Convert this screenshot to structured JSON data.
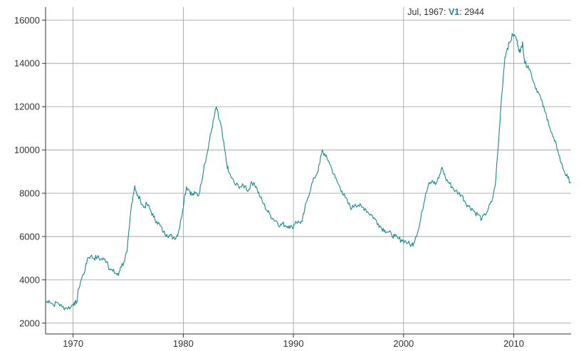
{
  "legend": {
    "date": "Jul, 1967",
    "series_name": "V1",
    "value": "2944"
  },
  "colors": {
    "line": "#1a8a8a",
    "grid": "#999999",
    "axis": "#333333",
    "legend_series": "#1a8a8a"
  },
  "chart_data": {
    "type": "line",
    "title": "",
    "xlabel": "",
    "ylabel": "",
    "x_ticks": [
      "1970",
      "1980",
      "1990",
      "2000",
      "2010"
    ],
    "y_ticks": [
      "2000",
      "4000",
      "6000",
      "8000",
      "10000",
      "12000",
      "14000",
      "16000"
    ],
    "xlim": [
      1967.5,
      2015.2
    ],
    "ylim": [
      1500,
      16600
    ],
    "grid": true,
    "series": [
      {
        "name": "V1",
        "points": [
          [
            1967.5,
            2944
          ],
          [
            1967.8,
            3050
          ],
          [
            1968.2,
            2850
          ],
          [
            1968.6,
            2950
          ],
          [
            1969.0,
            2750
          ],
          [
            1969.4,
            2700
          ],
          [
            1969.8,
            2750
          ],
          [
            1970.1,
            2950
          ],
          [
            1970.3,
            2900
          ],
          [
            1970.5,
            3600
          ],
          [
            1970.8,
            4100
          ],
          [
            1971.1,
            4500
          ],
          [
            1971.3,
            5000
          ],
          [
            1971.6,
            5100
          ],
          [
            1971.9,
            5000
          ],
          [
            1972.2,
            5050
          ],
          [
            1972.5,
            4950
          ],
          [
            1972.8,
            4950
          ],
          [
            1973.1,
            4850
          ],
          [
            1973.3,
            4500
          ],
          [
            1973.6,
            4400
          ],
          [
            1973.9,
            4300
          ],
          [
            1974.1,
            4200
          ],
          [
            1974.3,
            4600
          ],
          [
            1974.6,
            4800
          ],
          [
            1974.9,
            5300
          ],
          [
            1975.1,
            6400
          ],
          [
            1975.3,
            7500
          ],
          [
            1975.6,
            8350
          ],
          [
            1975.8,
            7900
          ],
          [
            1976.1,
            7700
          ],
          [
            1976.4,
            7350
          ],
          [
            1976.7,
            7500
          ],
          [
            1977.0,
            7250
          ],
          [
            1977.3,
            6900
          ],
          [
            1977.6,
            6700
          ],
          [
            1977.9,
            6500
          ],
          [
            1978.2,
            6200
          ],
          [
            1978.5,
            6100
          ],
          [
            1978.8,
            6050
          ],
          [
            1979.1,
            5950
          ],
          [
            1979.4,
            6000
          ],
          [
            1979.6,
            6300
          ],
          [
            1979.8,
            6800
          ],
          [
            1980.1,
            7800
          ],
          [
            1980.3,
            8300
          ],
          [
            1980.6,
            8100
          ],
          [
            1980.8,
            7900
          ],
          [
            1981.1,
            8000
          ],
          [
            1981.4,
            7900
          ],
          [
            1981.6,
            8400
          ],
          [
            1981.9,
            9300
          ],
          [
            1982.2,
            9900
          ],
          [
            1982.4,
            10500
          ],
          [
            1982.6,
            11000
          ],
          [
            1982.8,
            11500
          ],
          [
            1983.0,
            12000
          ],
          [
            1983.2,
            11500
          ],
          [
            1983.4,
            11200
          ],
          [
            1983.6,
            10500
          ],
          [
            1983.9,
            9500
          ],
          [
            1984.1,
            9000
          ],
          [
            1984.4,
            8700
          ],
          [
            1984.7,
            8400
          ],
          [
            1985.0,
            8350
          ],
          [
            1985.3,
            8300
          ],
          [
            1985.6,
            8350
          ],
          [
            1985.9,
            8100
          ],
          [
            1986.1,
            8400
          ],
          [
            1986.4,
            8500
          ],
          [
            1986.7,
            8200
          ],
          [
            1987.0,
            7800
          ],
          [
            1987.3,
            7500
          ],
          [
            1987.6,
            7200
          ],
          [
            1987.9,
            7000
          ],
          [
            1988.2,
            6800
          ],
          [
            1988.5,
            6700
          ],
          [
            1988.8,
            6500
          ],
          [
            1989.0,
            6600
          ],
          [
            1989.3,
            6500
          ],
          [
            1989.6,
            6500
          ],
          [
            1989.9,
            6400
          ],
          [
            1990.2,
            6700
          ],
          [
            1990.5,
            6650
          ],
          [
            1990.8,
            6700
          ],
          [
            1991.0,
            7200
          ],
          [
            1991.3,
            7800
          ],
          [
            1991.6,
            8300
          ],
          [
            1991.9,
            8700
          ],
          [
            1992.2,
            9000
          ],
          [
            1992.4,
            9400
          ],
          [
            1992.6,
            10000
          ],
          [
            1992.9,
            9700
          ],
          [
            1993.2,
            9500
          ],
          [
            1993.5,
            9100
          ],
          [
            1993.8,
            8700
          ],
          [
            1994.1,
            8400
          ],
          [
            1994.4,
            8100
          ],
          [
            1994.7,
            7800
          ],
          [
            1995.0,
            7500
          ],
          [
            1995.3,
            7300
          ],
          [
            1995.6,
            7500
          ],
          [
            1995.9,
            7450
          ],
          [
            1996.2,
            7350
          ],
          [
            1996.5,
            7300
          ],
          [
            1996.8,
            7100
          ],
          [
            1997.1,
            7000
          ],
          [
            1997.4,
            6800
          ],
          [
            1997.7,
            6600
          ],
          [
            1998.0,
            6400
          ],
          [
            1998.3,
            6300
          ],
          [
            1998.6,
            6200
          ],
          [
            1998.9,
            6100
          ],
          [
            1999.2,
            6000
          ],
          [
            1999.5,
            5900
          ],
          [
            1999.8,
            5850
          ],
          [
            2000.1,
            5800
          ],
          [
            2000.4,
            5700
          ],
          [
            2000.7,
            5600
          ],
          [
            2000.9,
            5700
          ],
          [
            2001.1,
            6000
          ],
          [
            2001.4,
            6400
          ],
          [
            2001.7,
            7200
          ],
          [
            2002.0,
            8000
          ],
          [
            2002.3,
            8500
          ],
          [
            2002.6,
            8600
          ],
          [
            2002.9,
            8400
          ],
          [
            2003.2,
            8700
          ],
          [
            2003.5,
            9200
          ],
          [
            2003.8,
            8700
          ],
          [
            2004.1,
            8500
          ],
          [
            2004.4,
            8300
          ],
          [
            2004.7,
            8100
          ],
          [
            2005.0,
            8000
          ],
          [
            2005.3,
            7900
          ],
          [
            2005.6,
            7600
          ],
          [
            2005.9,
            7400
          ],
          [
            2006.2,
            7300
          ],
          [
            2006.5,
            7100
          ],
          [
            2006.8,
            7000
          ],
          [
            2007.1,
            6800
          ],
          [
            2007.4,
            7000
          ],
          [
            2007.7,
            7300
          ],
          [
            2008.0,
            7600
          ],
          [
            2008.3,
            8300
          ],
          [
            2008.6,
            10200
          ],
          [
            2008.9,
            12500
          ],
          [
            2009.2,
            14300
          ],
          [
            2009.4,
            14700
          ],
          [
            2009.7,
            15000
          ],
          [
            2009.9,
            15350
          ],
          [
            2010.2,
            15200
          ],
          [
            2010.4,
            14800
          ],
          [
            2010.6,
            14500
          ],
          [
            2010.8,
            15000
          ],
          [
            2011.0,
            14000
          ],
          [
            2011.3,
            13900
          ],
          [
            2011.6,
            13500
          ],
          [
            2011.9,
            13000
          ],
          [
            2012.2,
            12700
          ],
          [
            2012.5,
            12300
          ],
          [
            2012.8,
            11800
          ],
          [
            2013.1,
            11400
          ],
          [
            2013.4,
            10800
          ],
          [
            2013.7,
            10400
          ],
          [
            2014.0,
            10000
          ],
          [
            2014.3,
            9400
          ],
          [
            2014.6,
            9000
          ],
          [
            2014.9,
            8700
          ],
          [
            2015.2,
            8500
          ]
        ]
      }
    ]
  }
}
